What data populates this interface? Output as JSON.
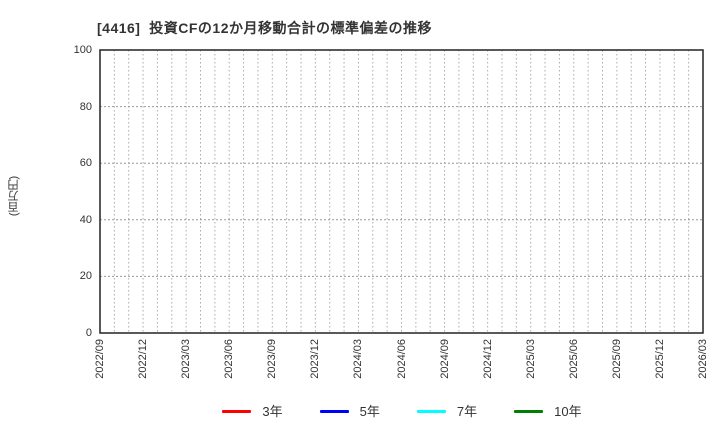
{
  "header": {
    "title": "[4416]  投資CFの12か月移動合計の標準偏差の推移"
  },
  "chart_data": {
    "type": "line",
    "title": "[4416]  投資CFの12か月移動合計の標準偏差の推移",
    "xlabel": "",
    "ylabel": "(百万円)",
    "ylim": [
      0,
      100
    ],
    "yticks": [
      0,
      20,
      40,
      60,
      80,
      100
    ],
    "x_tick_labels": [
      "2022/09",
      "2022/12",
      "2023/03",
      "2023/06",
      "2023/09",
      "2023/12",
      "2024/03",
      "2024/06",
      "2024/09",
      "2024/12",
      "2025/03",
      "2025/06",
      "2025/09",
      "2025/12",
      "2026/03"
    ],
    "x_total_month_intervals": 42,
    "x_label_every_months": 3,
    "grid": true,
    "grid_style": "dotted",
    "legend_position": "bottom",
    "series": [
      {
        "name": "3年",
        "color": "#ff0000",
        "values": []
      },
      {
        "name": "5年",
        "color": "#0000ff",
        "values": []
      },
      {
        "name": "7年",
        "color": "#00ffff",
        "values": []
      },
      {
        "name": "10年",
        "color": "#008000",
        "values": []
      }
    ]
  }
}
